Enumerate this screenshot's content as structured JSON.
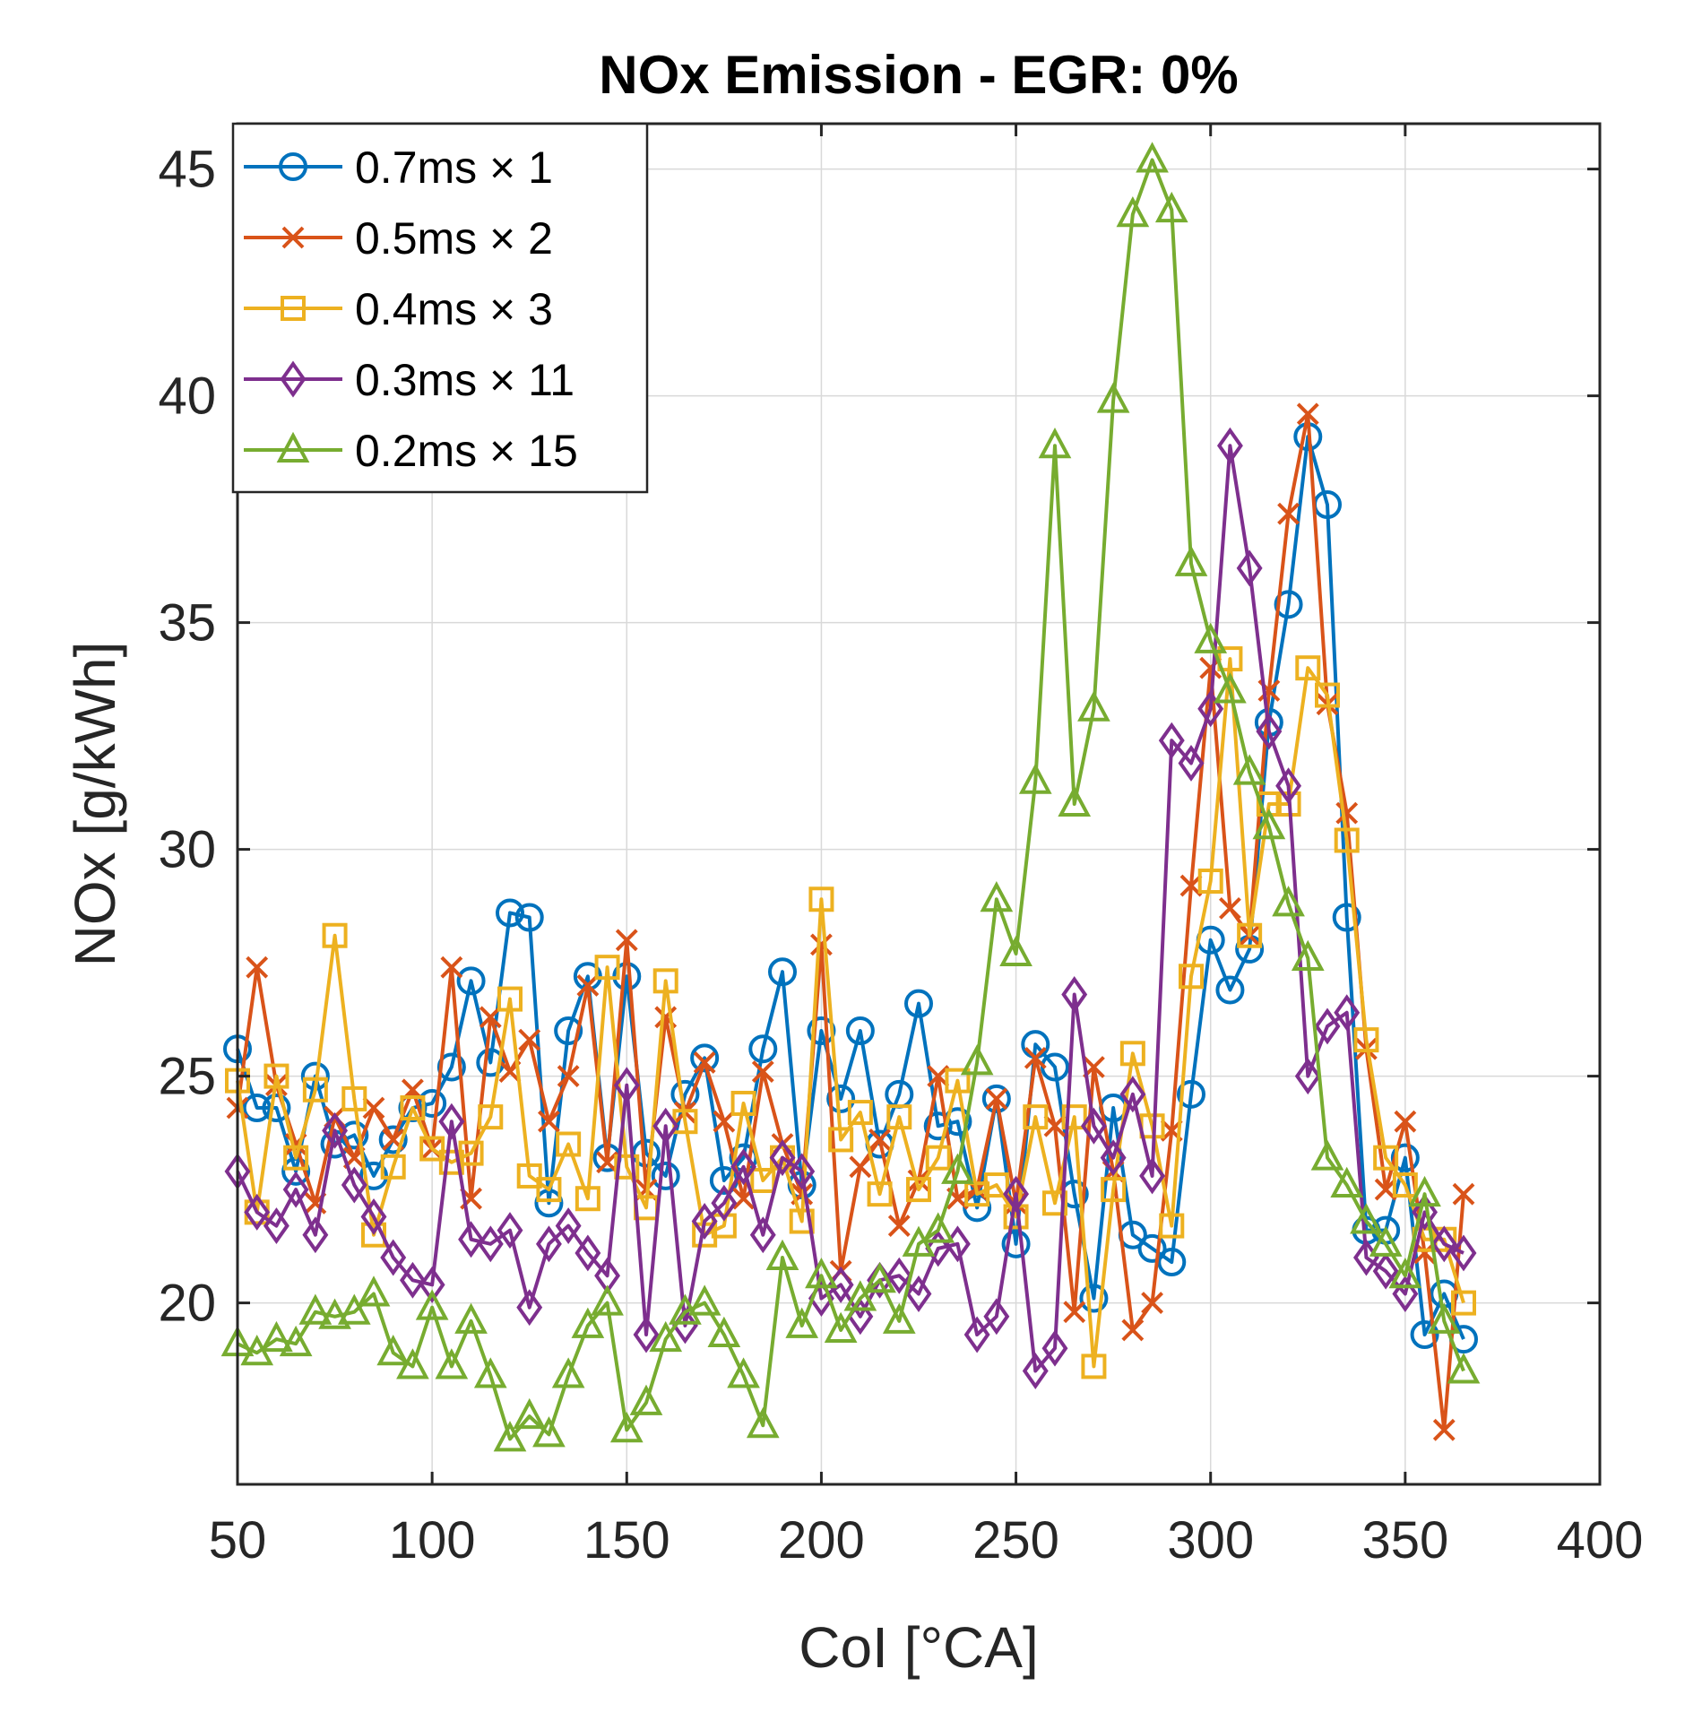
{
  "chart_data": {
    "type": "line",
    "title": "NOx Emission - EGR: 0%",
    "xlabel": "CoI [°CA]",
    "ylabel": "NOx [g/kWh]",
    "xlim": [
      50,
      400
    ],
    "ylim": [
      16,
      46
    ],
    "xticks": [
      50,
      100,
      150,
      200,
      250,
      300,
      350,
      400
    ],
    "yticks": [
      20,
      25,
      30,
      35,
      40,
      45
    ],
    "grid": true,
    "legend_position": "top-left",
    "x": [
      50,
      55,
      60,
      65,
      70,
      75,
      80,
      85,
      90,
      95,
      100,
      105,
      110,
      115,
      120,
      125,
      130,
      135,
      140,
      145,
      150,
      155,
      160,
      165,
      170,
      175,
      180,
      185,
      190,
      195,
      200,
      205,
      210,
      215,
      220,
      225,
      230,
      235,
      240,
      245,
      250,
      255,
      260,
      265,
      270,
      275,
      280,
      285,
      290,
      295,
      300,
      305,
      310,
      315,
      320,
      325,
      330,
      335,
      340,
      345,
      350,
      355,
      360,
      365
    ],
    "series": [
      {
        "name": "0.7ms × 1",
        "color": "#0072BD",
        "marker": "circle",
        "values": [
          25.6,
          24.3,
          24.3,
          22.9,
          25.0,
          23.5,
          23.7,
          22.8,
          23.6,
          24.3,
          24.4,
          25.2,
          27.1,
          25.3,
          28.6,
          28.5,
          22.2,
          26.0,
          27.2,
          23.2,
          27.2,
          23.3,
          22.8,
          24.6,
          25.4,
          22.7,
          23.2,
          25.6,
          27.3,
          22.6,
          26.0,
          24.5,
          26.0,
          23.5,
          24.6,
          26.6,
          23.9,
          24.0,
          22.1,
          24.5,
          21.3,
          25.7,
          25.2,
          22.4,
          20.1,
          24.3,
          21.5,
          21.2,
          20.9,
          24.6,
          28.0,
          26.9,
          27.8,
          32.8,
          35.4,
          39.1,
          37.6,
          28.5,
          21.6,
          21.6,
          23.2,
          19.3,
          20.2,
          19.2
        ]
      },
      {
        "name": "0.5ms × 2",
        "color": "#D95319",
        "marker": "x",
        "values": [
          24.3,
          27.4,
          24.8,
          23.5,
          22.2,
          24.1,
          23.2,
          24.3,
          23.6,
          24.7,
          23.4,
          27.4,
          22.3,
          26.3,
          25.1,
          25.8,
          24.0,
          25.0,
          27.0,
          23.1,
          28.0,
          22.5,
          26.3,
          24.2,
          25.3,
          24.0,
          22.3,
          25.1,
          23.5,
          22.4,
          27.9,
          20.7,
          23.0,
          23.6,
          21.7,
          22.7,
          25.0,
          22.3,
          22.5,
          24.5,
          22.2,
          25.4,
          23.9,
          19.8,
          25.2,
          22.9,
          19.4,
          20.0,
          23.8,
          29.2,
          34.0,
          28.7,
          28.1,
          33.5,
          37.4,
          39.6,
          33.2,
          30.8,
          25.6,
          22.5,
          24.0,
          21.1,
          17.2,
          22.4
        ]
      },
      {
        "name": "0.4ms × 3",
        "color": "#EDB120",
        "marker": "square",
        "values": [
          24.9,
          22.0,
          25.0,
          23.2,
          24.7,
          28.1,
          24.5,
          21.5,
          23.0,
          24.3,
          23.4,
          23.1,
          23.3,
          24.1,
          26.7,
          22.8,
          22.5,
          23.5,
          22.3,
          27.4,
          23.0,
          22.1,
          27.1,
          24.0,
          21.5,
          21.7,
          24.4,
          22.7,
          23.2,
          21.8,
          28.9,
          23.6,
          24.2,
          22.4,
          24.1,
          22.5,
          23.2,
          24.9,
          22.4,
          22.6,
          21.9,
          24.1,
          22.2,
          24.1,
          18.6,
          22.5,
          25.5,
          23.9,
          21.7,
          27.2,
          29.3,
          34.2,
          28.1,
          31.0,
          31.0,
          34.0,
          33.4,
          30.2,
          25.8,
          23.2,
          22.6,
          21.4,
          21.4,
          20.0
        ]
      },
      {
        "name": "0.3ms × 11",
        "color": "#7E2F8E",
        "marker": "diamond",
        "values": [
          22.9,
          22.0,
          21.7,
          22.5,
          21.5,
          23.8,
          22.6,
          21.9,
          21.0,
          20.5,
          20.4,
          24.0,
          21.4,
          21.3,
          21.6,
          19.9,
          21.3,
          21.7,
          21.1,
          20.6,
          24.8,
          19.3,
          23.9,
          19.5,
          21.8,
          22.2,
          23.0,
          21.5,
          23.2,
          22.9,
          20.1,
          20.4,
          19.7,
          20.5,
          20.6,
          20.2,
          21.2,
          21.3,
          19.3,
          19.7,
          22.4,
          18.5,
          19.0,
          26.8,
          23.9,
          23.2,
          24.6,
          22.8,
          32.4,
          31.9,
          33.1,
          38.9,
          36.2,
          32.6,
          31.4,
          25.0,
          26.1,
          26.4,
          21.0,
          20.7,
          20.2,
          22.0,
          21.3,
          21.1
        ]
      },
      {
        "name": "0.2ms × 15",
        "color": "#77AC30",
        "marker": "triangle",
        "values": [
          19.1,
          18.9,
          19.2,
          19.1,
          19.8,
          19.7,
          19.8,
          20.2,
          18.9,
          18.6,
          19.9,
          18.6,
          19.6,
          18.4,
          17.0,
          17.5,
          17.1,
          18.4,
          19.5,
          20.0,
          17.2,
          17.8,
          19.2,
          19.8,
          20.0,
          19.3,
          18.4,
          17.3,
          21.0,
          19.5,
          20.6,
          19.4,
          20.1,
          20.5,
          19.6,
          21.3,
          21.6,
          22.9,
          25.3,
          28.9,
          27.7,
          31.5,
          38.9,
          31.0,
          33.1,
          39.9,
          44.0,
          45.2,
          44.1,
          36.3,
          34.6,
          33.5,
          31.7,
          30.5,
          28.8,
          27.6,
          23.2,
          22.6,
          21.8,
          21.3,
          20.6,
          22.4,
          19.6,
          18.5
        ]
      }
    ]
  }
}
